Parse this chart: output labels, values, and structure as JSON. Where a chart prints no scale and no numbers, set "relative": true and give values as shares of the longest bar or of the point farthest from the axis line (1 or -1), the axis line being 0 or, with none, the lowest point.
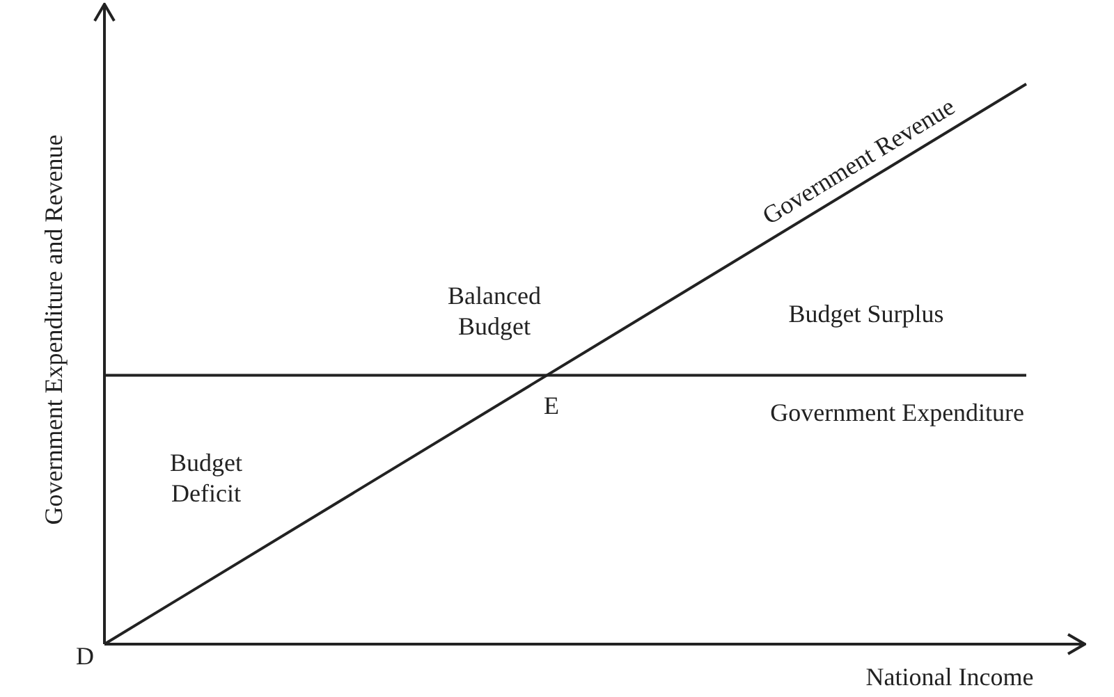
{
  "chart_data": {
    "type": "line",
    "xlabel": "National Income",
    "ylabel": "Government Expenditure and Revenue",
    "categories": [
      null,
      null
    ],
    "relative": true,
    "legend": false,
    "marker": "none",
    "line_style": "solid",
    "series": [
      {
        "name": "Government Revenue",
        "color": "#222222",
        "values": [
          0,
          1
        ]
      },
      {
        "name": "Government Expenditure",
        "color": "#222222",
        "values": [
          0.48,
          0.48
        ]
      }
    ],
    "annotations": [
      "Balanced Budget",
      "Budget Surplus",
      "Budget Deficit",
      "E",
      "D"
    ]
  }
}
